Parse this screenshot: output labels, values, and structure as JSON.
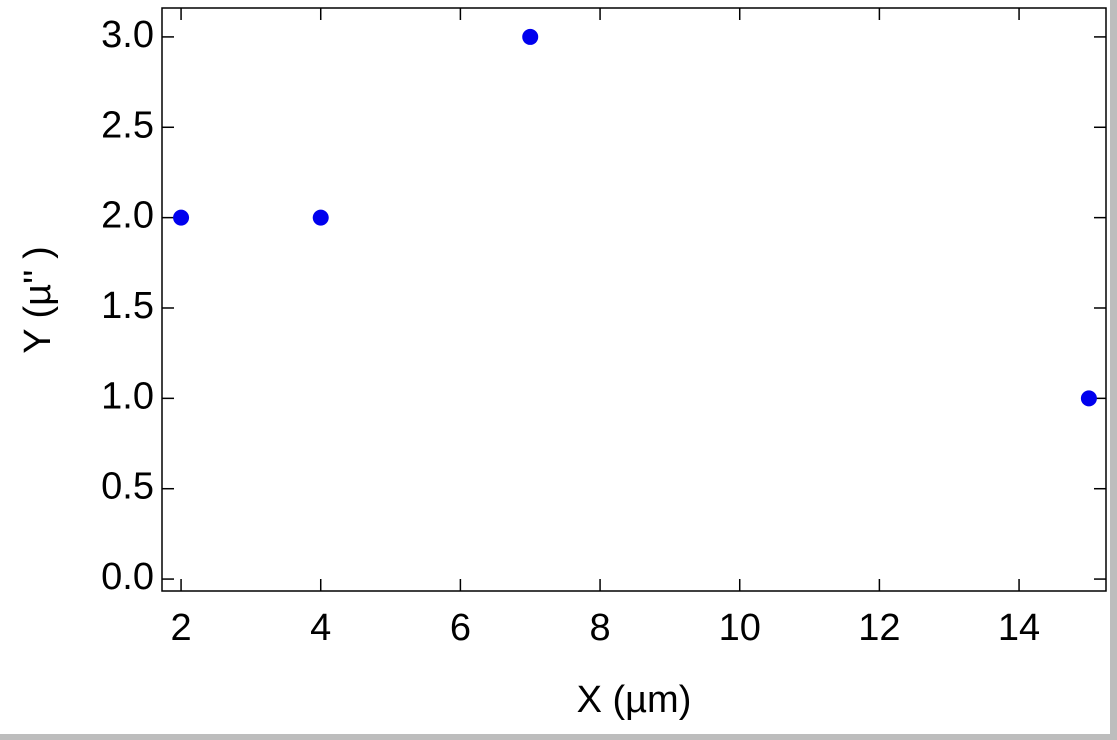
{
  "chart_data": {
    "type": "scatter",
    "x_label": "X (µm)",
    "y_label": "Y (µ'' )",
    "series": [
      {
        "color": "#0000ee",
        "x": [
          2,
          4,
          7,
          15
        ],
        "values": [
          2.0,
          2.0,
          3.0,
          1.0
        ]
      }
    ],
    "xlim": [
      1.727,
      15.245
    ],
    "ylim": [
      -0.066,
      3.16
    ],
    "xticks": [
      2,
      4,
      6,
      8,
      10,
      12,
      14
    ],
    "yticks": [
      {
        "value": 0,
        "label": "0.0"
      },
      {
        "value": 0.5,
        "label": "0.5"
      },
      {
        "value": 1,
        "label": "1.0"
      },
      {
        "value": 1.5,
        "label": "1.5"
      },
      {
        "value": 2,
        "label": "2.0"
      },
      {
        "value": 2.5,
        "label": "2.5"
      },
      {
        "value": 3,
        "label": "3.0"
      }
    ]
  }
}
